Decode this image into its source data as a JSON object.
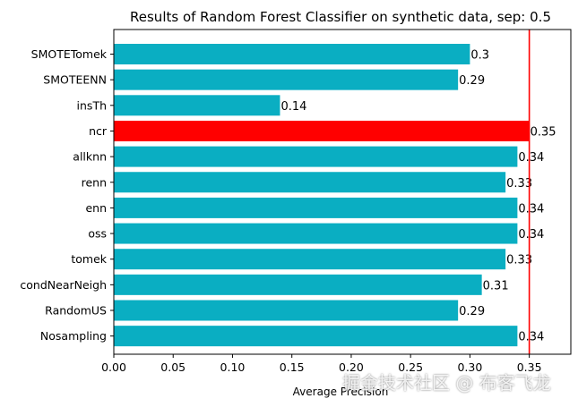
{
  "chart_data": {
    "type": "bar",
    "orientation": "horizontal",
    "title": "Results of Random Forest Classifier on synthetic data, sep: 0.5",
    "xlabel": "Average Precision",
    "ylabel": "",
    "categories": [
      "SMOTETomek",
      "SMOTEENN",
      "insTh",
      "ncr",
      "allknn",
      "renn",
      "enn",
      "oss",
      "tomek",
      "condNearNeigh",
      "RandomUS",
      "Nosampling"
    ],
    "values": [
      0.3,
      0.29,
      0.14,
      0.35,
      0.34,
      0.33,
      0.34,
      0.34,
      0.33,
      0.31,
      0.29,
      0.34
    ],
    "value_labels": [
      "0.3",
      "0.29",
      "0.14",
      "0.35",
      "0.34",
      "0.33",
      "0.34",
      "0.34",
      "0.33",
      "0.31",
      "0.29",
      "0.34"
    ],
    "highlight_category": "ncr",
    "xlim": [
      0,
      0.385
    ],
    "xticks": [
      "0.00",
      "0.05",
      "0.10",
      "0.15",
      "0.20",
      "0.25",
      "0.30",
      "0.35"
    ],
    "xtick_values": [
      0,
      0.05,
      0.1,
      0.15,
      0.2,
      0.25,
      0.3,
      0.35
    ],
    "reference_line": 0.35,
    "grid": false,
    "colors": {
      "bar": "#0aaec2",
      "highlight": "#ff0000",
      "reference_line": "#ff0000",
      "text": "#000000"
    }
  },
  "watermark": "掘金技术社区 @ 布客飞龙"
}
